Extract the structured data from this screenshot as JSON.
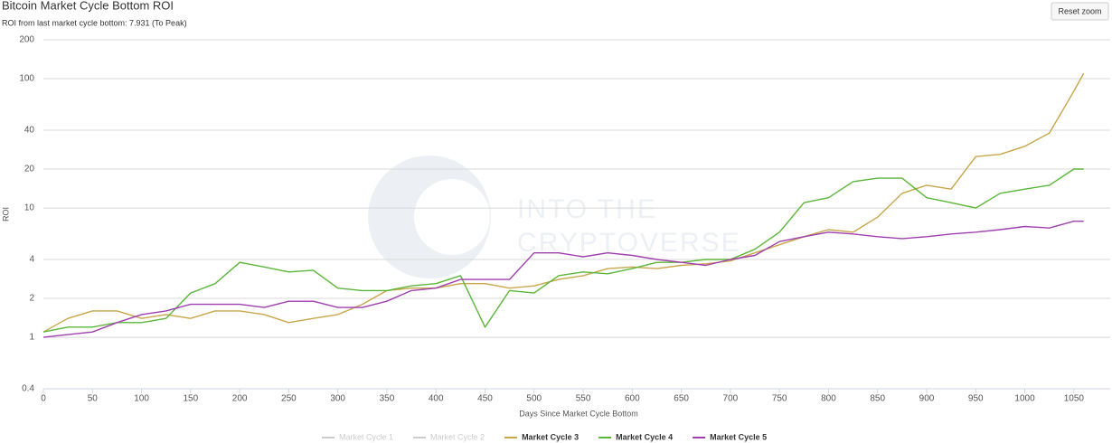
{
  "chart_data": {
    "type": "line",
    "title": "Bitcoin Market Cycle Bottom ROI",
    "subtitle": "ROI from last market cycle bottom: 7.931 (To Peak)",
    "reset_button": "Reset zoom",
    "watermark": [
      "INTO THE",
      "CRYPTOVERSE"
    ],
    "x_label": "Days Since Market Cycle Bottom",
    "y_label": "ROI",
    "log_y": true,
    "grid": true,
    "legend_position": "bottom",
    "legend_hidden_color": "#cccccc",
    "xlim": [
      0,
      1087
    ],
    "ylim": [
      0.4,
      200
    ],
    "xticks": [
      0,
      50,
      100,
      150,
      200,
      250,
      300,
      350,
      400,
      450,
      500,
      550,
      600,
      650,
      700,
      750,
      800,
      850,
      900,
      950,
      1000,
      1050
    ],
    "yticks": [
      0.4,
      1,
      2,
      4,
      10,
      20,
      40,
      100,
      200
    ],
    "x": [
      0,
      25,
      50,
      75,
      100,
      125,
      150,
      175,
      200,
      225,
      250,
      275,
      300,
      325,
      350,
      375,
      400,
      425,
      450,
      475,
      500,
      525,
      550,
      575,
      600,
      625,
      650,
      675,
      700,
      725,
      750,
      775,
      800,
      825,
      850,
      875,
      900,
      925,
      950,
      975,
      1000,
      1025,
      1050,
      1060
    ],
    "series": [
      {
        "name": "Market Cycle 1",
        "visible": false
      },
      {
        "name": "Market Cycle 2",
        "visible": false
      },
      {
        "name": "Market Cycle 3",
        "visible": true,
        "color": "#c8a64a",
        "values": [
          1.1,
          1.4,
          1.6,
          1.6,
          1.4,
          1.5,
          1.4,
          1.6,
          1.6,
          1.5,
          1.3,
          1.4,
          1.5,
          1.8,
          2.3,
          2.4,
          2.4,
          2.6,
          2.6,
          2.4,
          2.5,
          2.8,
          3.0,
          3.4,
          3.5,
          3.4,
          3.6,
          3.7,
          3.9,
          4.5,
          5.2,
          6.0,
          6.8,
          6.5,
          8.5,
          13,
          15,
          14,
          25,
          26,
          30,
          38,
          80,
          110
        ]
      },
      {
        "name": "Market Cycle 4",
        "visible": true,
        "color": "#5cb63a",
        "values": [
          1.1,
          1.2,
          1.2,
          1.3,
          1.3,
          1.4,
          2.2,
          2.6,
          3.8,
          3.5,
          3.2,
          3.3,
          2.4,
          2.3,
          2.3,
          2.5,
          2.6,
          3.0,
          1.2,
          2.3,
          2.2,
          3.0,
          3.2,
          3.1,
          3.4,
          3.8,
          3.8,
          4.0,
          4.0,
          4.8,
          6.5,
          11,
          12,
          16,
          17,
          17,
          12,
          11,
          10,
          13,
          14,
          15,
          20,
          20
        ]
      },
      {
        "name": "Market Cycle 5",
        "visible": true,
        "color": "#a03fb0",
        "values": [
          1.0,
          1.05,
          1.1,
          1.3,
          1.5,
          1.6,
          1.8,
          1.8,
          1.8,
          1.7,
          1.9,
          1.9,
          1.7,
          1.7,
          1.9,
          2.3,
          2.4,
          2.8,
          2.8,
          2.8,
          4.5,
          4.5,
          4.2,
          4.5,
          4.3,
          4.0,
          3.8,
          3.6,
          4.0,
          4.3,
          5.5,
          6.0,
          6.5,
          6.3,
          6.0,
          5.8,
          6.0,
          6.3,
          6.5,
          6.8,
          7.2,
          7.0,
          7.9,
          7.9
        ]
      }
    ]
  }
}
